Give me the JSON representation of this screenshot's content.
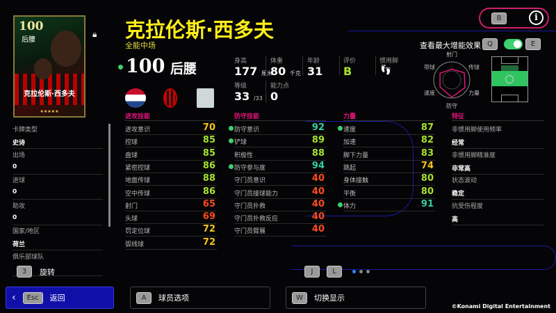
{
  "player": {
    "name": "克拉伦斯·西多夫",
    "playstyle": "全能中场",
    "overall": "100",
    "position": "后腰",
    "card_stars": "★★★★★"
  },
  "info": {
    "height_label": "身高",
    "height": "177",
    "height_unit": "厘米",
    "weight_label": "体重",
    "weight": "80",
    "weight_unit": "千克",
    "age_label": "年龄",
    "age": "31",
    "rating_label": "评价",
    "rating": "B",
    "foot_label": "惯用脚",
    "level_label": "等级",
    "level": "33",
    "level_max": "/33",
    "points_label": "能力点",
    "points": "0"
  },
  "top": {
    "b_key": "B",
    "info_icon": "i",
    "boost_label": "查看最大增能效果",
    "q_key": "Q",
    "e_key": "E",
    "boost_toggle_on": true
  },
  "radar": {
    "labels": [
      "射门",
      "传球",
      "力量",
      "防守",
      "速度",
      "带球"
    ],
    "values": [
      0.6,
      0.8,
      0.85,
      0.95,
      0.75,
      0.75
    ]
  },
  "left_list": [
    {
      "label": "卡牌类型",
      "value": "史诗"
    },
    {
      "label": "出场",
      "value": "0"
    },
    {
      "label": "进球",
      "value": "0"
    },
    {
      "label": "助攻",
      "value": "0"
    },
    {
      "label": "国家/地区",
      "value": "荷兰"
    },
    {
      "label": "俱乐部球队",
      "value": ""
    }
  ],
  "rotate": {
    "key": "3",
    "label": "旋转"
  },
  "columns": [
    {
      "title": "进攻技能",
      "stats": [
        {
          "n": "进攻意识",
          "v": 70
        },
        {
          "n": "控球",
          "v": 85
        },
        {
          "n": "盘球",
          "v": 85
        },
        {
          "n": "紧密控球",
          "v": 86
        },
        {
          "n": "地面传球",
          "v": 88
        },
        {
          "n": "空中传球",
          "v": 86
        },
        {
          "n": "射门",
          "v": 65
        },
        {
          "n": "头球",
          "v": 69
        },
        {
          "n": "罚定位球",
          "v": 72
        },
        {
          "n": "弧线球",
          "v": 72
        }
      ]
    },
    {
      "title": "防守技能",
      "stats": [
        {
          "n": "防守意识",
          "v": 92,
          "dot": true
        },
        {
          "n": "铲球",
          "v": 89,
          "dot": true
        },
        {
          "n": "积极性",
          "v": 88
        },
        {
          "n": "防守参与度",
          "v": 94,
          "dot": true
        },
        {
          "n": "守门员意识",
          "v": 40
        },
        {
          "n": "守门员接球能力",
          "v": 40
        },
        {
          "n": "守门员扑救",
          "v": 40
        },
        {
          "n": "守门员扑救反应",
          "v": 40
        },
        {
          "n": "守门员臂展",
          "v": 40
        }
      ]
    },
    {
      "title": "力量",
      "stats": [
        {
          "n": "速度",
          "v": 87,
          "dot": true
        },
        {
          "n": "加速",
          "v": 82
        },
        {
          "n": "脚下力量",
          "v": 83
        },
        {
          "n": "跳起",
          "v": 74
        },
        {
          "n": "身体接触",
          "v": 80
        },
        {
          "n": "平衡",
          "v": 80
        },
        {
          "n": "体力",
          "v": 91,
          "dot": true
        }
      ]
    }
  ],
  "traits": {
    "title": "特征",
    "items": [
      {
        "label": "非惯用脚使用频率",
        "value": "经常"
      },
      {
        "label": "非惯用脚精准度",
        "value": "非常高"
      },
      {
        "label": "状态波动",
        "value": "稳定"
      },
      {
        "label": "抗受伤程度",
        "value": "高"
      }
    ]
  },
  "pager": {
    "j_key": "J",
    "l_key": "L",
    "pages": 3,
    "current": 1
  },
  "footer": {
    "back_key": "Esc",
    "back_label": "返回",
    "a_key": "A",
    "a_label": "球员选项",
    "w_key": "W",
    "w_label": "切换显示",
    "copyright": "©Konami Digital Entertainment"
  },
  "colors": {
    "accent": "#e0157a",
    "title": "#ffee1a",
    "s90": "#35d0a0",
    "s80": "#a6e22e",
    "s70": "#f5c518",
    "slow": "#ff4a1f"
  }
}
